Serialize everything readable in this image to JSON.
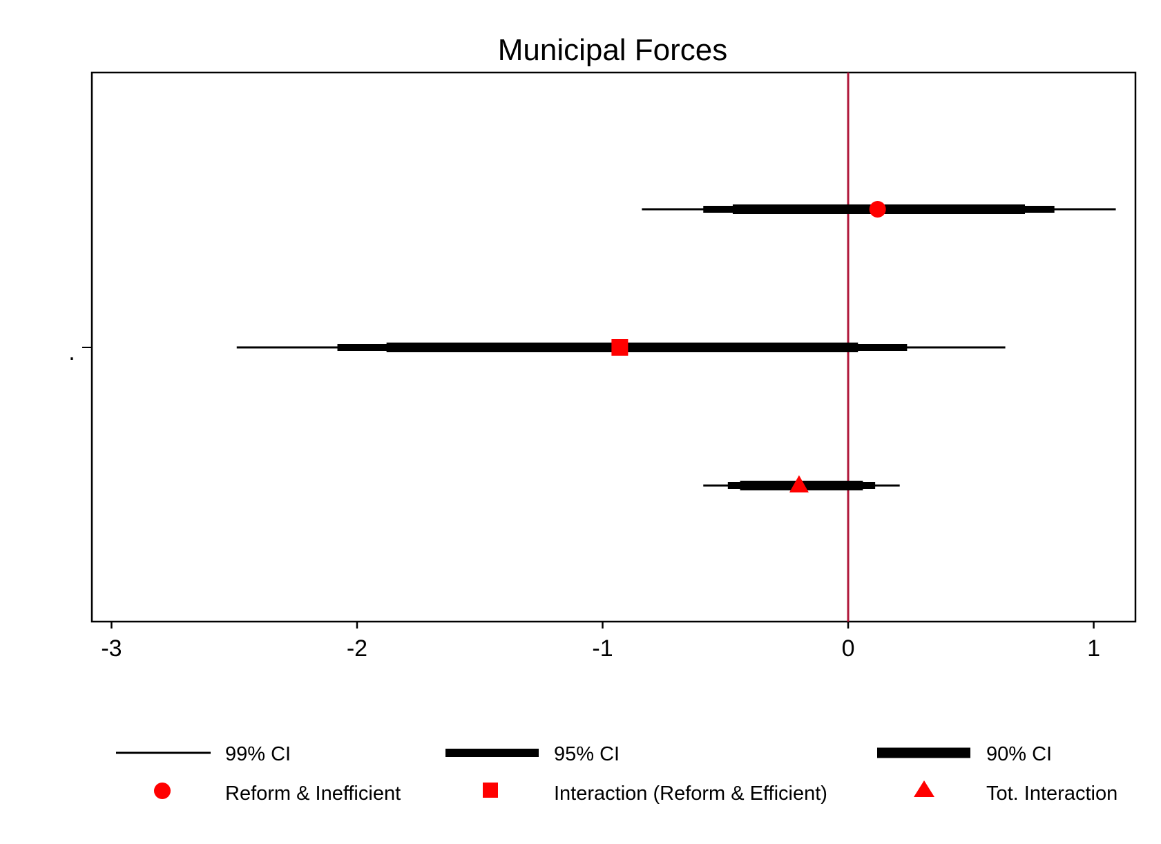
{
  "chart_data": {
    "type": "coefficient-plot",
    "title": "Municipal Forces",
    "xlabel": "",
    "ylabel": "",
    "xlim": [
      -3.08,
      1.17
    ],
    "xticks": [
      -3,
      -2,
      -1,
      0,
      1
    ],
    "xtick_labels": [
      "-3",
      "-2",
      "-1",
      "0",
      "1"
    ],
    "ytick_labels": [
      "."
    ],
    "reference_line": {
      "x": 0,
      "color": "#b0173a"
    },
    "grid": false,
    "legend_position": "bottom",
    "series": [
      {
        "name": "Reform & Inefficient",
        "marker": "circle",
        "estimate": 0.12,
        "ci99": [
          -0.84,
          1.09
        ],
        "ci95": [
          -0.59,
          0.84
        ],
        "ci90": [
          -0.47,
          0.72
        ]
      },
      {
        "name": "Interaction (Reform & Efficient)",
        "marker": "square",
        "estimate": -0.93,
        "ci99": [
          -2.49,
          0.64
        ],
        "ci95": [
          -2.08,
          0.24
        ],
        "ci90": [
          -1.88,
          0.04
        ]
      },
      {
        "name": "Tot. Interaction",
        "marker": "triangle",
        "estimate": -0.2,
        "ci99": [
          -0.59,
          0.21
        ],
        "ci95": [
          -0.49,
          0.11
        ],
        "ci90": [
          -0.44,
          0.06
        ]
      }
    ],
    "legend": {
      "ci_labels": [
        "99% CI",
        "95% CI",
        "90% CI"
      ],
      "marker_labels": [
        "Reform & Inefficient",
        "Interaction (Reform & Efficient)",
        "Tot. Interaction"
      ]
    },
    "colors": {
      "marker": "#ff0000",
      "ci": "#000000",
      "reference": "#b0173a"
    }
  }
}
